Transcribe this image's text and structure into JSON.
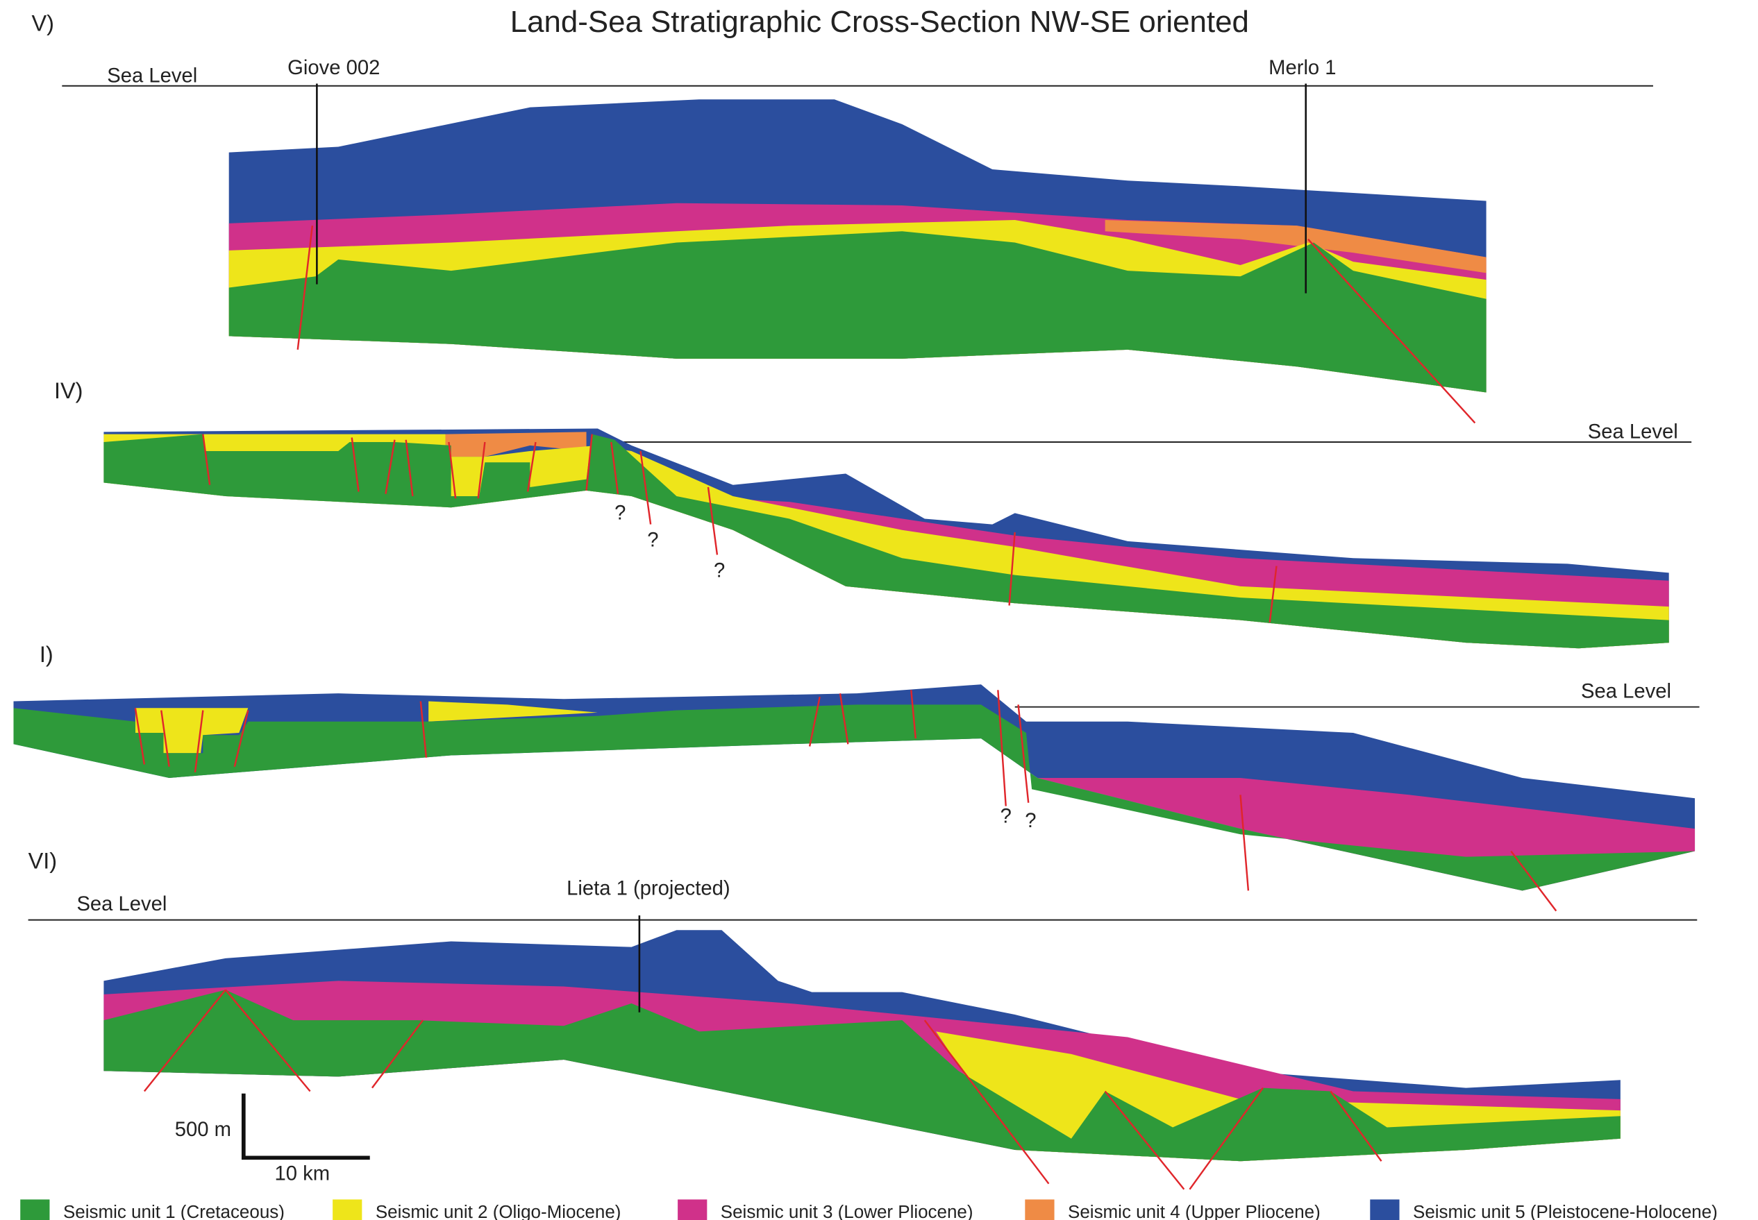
{
  "title": "Land-Sea Stratigraphic Cross-Section NW-SE oriented",
  "sections": [
    {
      "label": "V)",
      "sea_level": "Sea Level",
      "wells": [
        "Giove 002",
        "Merlo 1"
      ]
    },
    {
      "label": "IV)",
      "sea_level": "Sea Level",
      "uncertain": [
        "?",
        "?",
        "?"
      ]
    },
    {
      "label": "I)",
      "sea_level": "Sea Level",
      "uncertain": [
        "?",
        "?"
      ]
    },
    {
      "label": "VI)",
      "sea_level": "Sea Level",
      "wells": [
        "Lieta 1 (projected)"
      ]
    }
  ],
  "scale_bar": {
    "vertical": "500 m",
    "horizontal": "10 km"
  },
  "legend": [
    {
      "label": "Seismic unit 1 (Cretaceous)",
      "color": "#2e9a3a"
    },
    {
      "label": "Seismic unit 2 (Oligo-Miocene)",
      "color": "#eee51a"
    },
    {
      "label": "Seismic unit 3 (Lower Pliocene)",
      "color": "#d0318a"
    },
    {
      "label": "Seismic unit 4 (Upper Pliocene)",
      "color": "#ef8b45"
    },
    {
      "label": "Seismic unit 5 (Pleistocene-Holocene)",
      "color": "#2b4e9e"
    }
  ]
}
